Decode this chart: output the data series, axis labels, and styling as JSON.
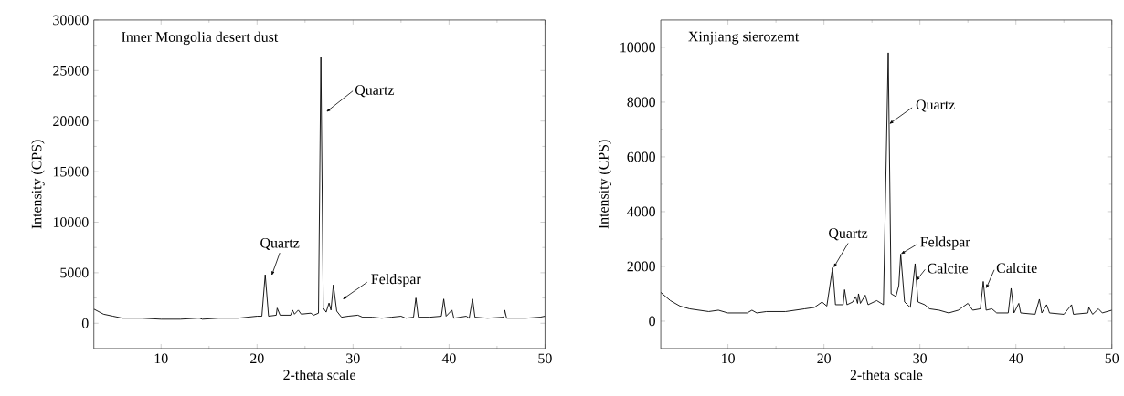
{
  "chart_data": [
    {
      "type": "line",
      "title": "Inner Mongolia desert dust",
      "xlabel": "2-theta scale",
      "ylabel": "Intensity (CPS)",
      "xlim": [
        3,
        50
      ],
      "ylim": [
        -2500,
        30000
      ],
      "xticks": [
        10,
        20,
        30,
        40,
        50
      ],
      "yticks": [
        0,
        5000,
        10000,
        15000,
        20000,
        25000,
        30000
      ],
      "grid": false,
      "series": [
        {
          "color": "#000000",
          "x": [
            3,
            4,
            5,
            6,
            8,
            10,
            12,
            13.8,
            14,
            14.3,
            16,
            18,
            20,
            20.5,
            20.85,
            21.2,
            22,
            22.1,
            22.4,
            23.5,
            23.7,
            23.9,
            24.3,
            24.6,
            25.6,
            25.9,
            26.4,
            26.65,
            26.9,
            27.2,
            27.5,
            27.7,
            27.95,
            28.3,
            28.8,
            29.5,
            30.5,
            31,
            32,
            33,
            34,
            35,
            35.5,
            36.3,
            36.55,
            36.8,
            38,
            39.2,
            39.45,
            39.7,
            40.3,
            40.5,
            41.8,
            42.1,
            42.45,
            42.7,
            44,
            45.7,
            45.8,
            46,
            48,
            49.5,
            50
          ],
          "values": [
            1400,
            900,
            700,
            500,
            500,
            400,
            400,
            500,
            500,
            400,
            500,
            500,
            700,
            700,
            4800,
            700,
            800,
            1500,
            800,
            800,
            1300,
            900,
            1300,
            900,
            1000,
            800,
            1000,
            26300,
            1500,
            1100,
            2000,
            1300,
            3800,
            1200,
            600,
            700,
            800,
            600,
            600,
            500,
            600,
            700,
            500,
            600,
            2500,
            600,
            600,
            700,
            2400,
            700,
            1300,
            500,
            700,
            500,
            2400,
            600,
            500,
            600,
            1300,
            500,
            500,
            600,
            700
          ]
        }
      ],
      "annotations": [
        "Quartz",
        {
          "text": "Quartz",
          "x": 20.85,
          "y": 4800
        },
        {
          "text": "Feldspar",
          "x": 27.95,
          "y": 3800
        }
      ]
    },
    {
      "type": "line",
      "title": "Xinjiang sierozemt",
      "xlabel": "2-theta scale",
      "ylabel": "Intensity (CPS)",
      "xlim": [
        3,
        50
      ],
      "ylim": [
        -1000,
        11000
      ],
      "xticks": [
        10,
        20,
        30,
        40,
        50
      ],
      "yticks": [
        0,
        2000,
        4000,
        6000,
        8000,
        10000
      ],
      "grid": false,
      "series": [
        {
          "color": "#000000",
          "x": [
            3,
            4,
            5,
            6,
            8,
            9,
            10,
            12,
            12.5,
            13,
            14,
            16,
            18,
            19,
            19.8,
            20.3,
            20.9,
            21.2,
            22,
            22.15,
            22.4,
            23,
            23.3,
            23.5,
            23.6,
            23.8,
            24.3,
            24.6,
            25.5,
            26.2,
            26.7,
            27,
            27.5,
            27.8,
            28.0,
            28.4,
            29,
            29.5,
            29.8,
            30.5,
            31,
            32,
            33,
            34,
            35,
            35.5,
            36.3,
            36.6,
            36.9,
            37.5,
            38,
            39.2,
            39.5,
            39.8,
            40.3,
            40.5,
            42,
            42.45,
            42.7,
            43.2,
            43.5,
            45,
            45.8,
            46,
            47.5,
            47.6,
            48,
            48.6,
            49,
            50
          ],
          "values": [
            1050,
            750,
            550,
            450,
            350,
            400,
            300,
            300,
            400,
            300,
            350,
            350,
            450,
            500,
            700,
            550,
            1950,
            600,
            600,
            1150,
            600,
            700,
            900,
            650,
            1000,
            650,
            950,
            600,
            750,
            600,
            9800,
            1000,
            900,
            1300,
            2450,
            700,
            500,
            2100,
            700,
            600,
            450,
            400,
            300,
            400,
            650,
            400,
            450,
            1450,
            400,
            450,
            300,
            300,
            1200,
            300,
            650,
            300,
            250,
            800,
            300,
            600,
            300,
            250,
            600,
            250,
            300,
            500,
            250,
            450,
            300,
            400
          ]
        }
      ],
      "annotations": [
        {
          "text": "Quartz",
          "x": 26.79,
          "y": 7200
        },
        {
          "text": "Quartz",
          "x": 20.9,
          "y": 1950
        },
        {
          "text": "Feldspar",
          "x": 28.0,
          "y": 2450
        },
        {
          "text": "Calcite",
          "x": 29.5,
          "y": 2100
        },
        {
          "text": "Calcite",
          "x": 36.6,
          "y": 1450
        }
      ]
    }
  ]
}
